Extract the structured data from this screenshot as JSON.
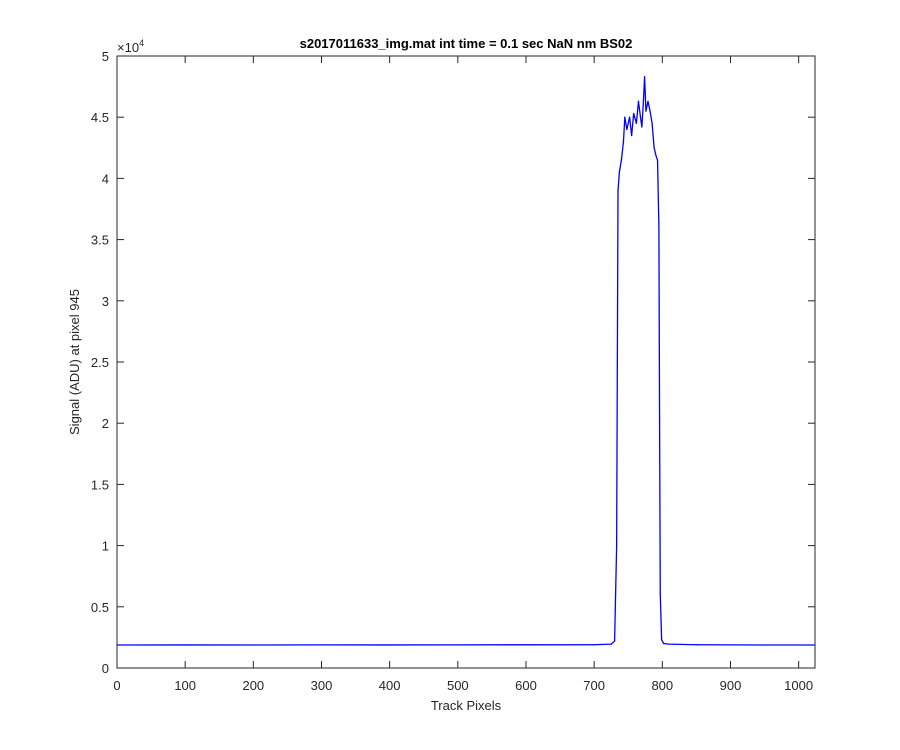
{
  "chart_data": {
    "type": "line",
    "title": "s2017011633_img.mat int time = 0.1 sec  NaN nm BS02",
    "xlabel": "Track Pixels",
    "ylabel": "Signal (ADU) at pixel 945",
    "xlim": [
      0,
      1024
    ],
    "ylim": [
      0,
      50000
    ],
    "x_ticks": [
      0,
      100,
      200,
      300,
      400,
      500,
      600,
      700,
      800,
      900,
      1000
    ],
    "y_ticks": [
      0,
      5000,
      10000,
      15000,
      20000,
      25000,
      30000,
      35000,
      40000,
      45000,
      50000
    ],
    "y_tick_labels": [
      "0",
      "0.5",
      "1",
      "1.5",
      "2",
      "2.5",
      "3",
      "3.5",
      "4",
      "4.5",
      "5"
    ],
    "y_exponent_label": "×10",
    "y_exponent": "4",
    "grid": false,
    "legend": "none",
    "series": [
      {
        "color": "#0000ff",
        "points": [
          [
            0,
            1880
          ],
          [
            100,
            1885
          ],
          [
            200,
            1880
          ],
          [
            300,
            1890
          ],
          [
            400,
            1885
          ],
          [
            500,
            1890
          ],
          [
            600,
            1895
          ],
          [
            700,
            1900
          ],
          [
            725,
            1950
          ],
          [
            730,
            2200
          ],
          [
            733,
            10000
          ],
          [
            735,
            39000
          ],
          [
            737,
            40500
          ],
          [
            740,
            41500
          ],
          [
            743,
            43000
          ],
          [
            745,
            45000
          ],
          [
            748,
            44000
          ],
          [
            752,
            45000
          ],
          [
            755,
            43500
          ],
          [
            758,
            45300
          ],
          [
            762,
            44500
          ],
          [
            765,
            46300
          ],
          [
            768,
            45000
          ],
          [
            770,
            44200
          ],
          [
            772,
            46000
          ],
          [
            774,
            48300
          ],
          [
            776,
            45500
          ],
          [
            779,
            46300
          ],
          [
            782,
            45500
          ],
          [
            785,
            44500
          ],
          [
            788,
            42500
          ],
          [
            791,
            41800
          ],
          [
            793,
            41500
          ],
          [
            795,
            36000
          ],
          [
            796,
            20000
          ],
          [
            797,
            6000
          ],
          [
            799,
            2300
          ],
          [
            802,
            2000
          ],
          [
            810,
            1950
          ],
          [
            850,
            1900
          ],
          [
            900,
            1890
          ],
          [
            950,
            1880
          ],
          [
            1024,
            1880
          ]
        ]
      }
    ]
  }
}
